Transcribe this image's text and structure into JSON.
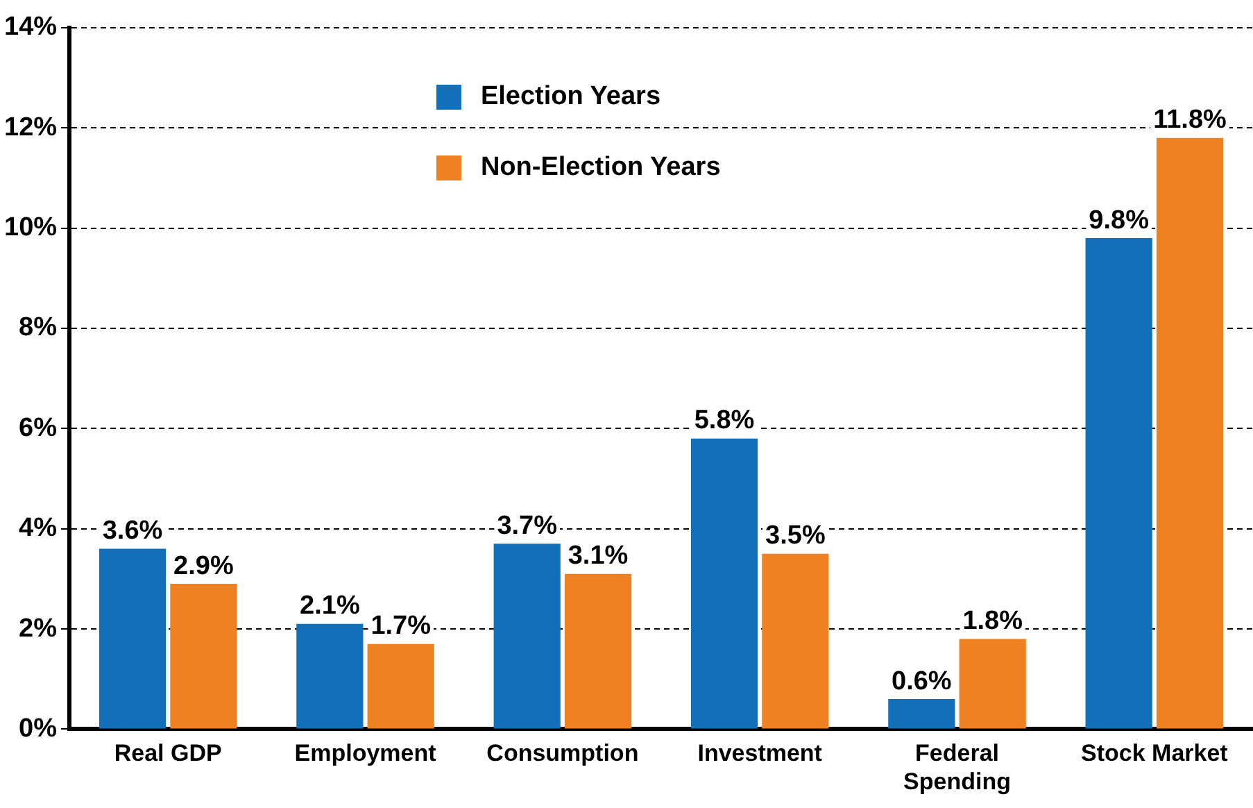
{
  "chart_data": {
    "type": "bar",
    "categories": [
      "Real GDP",
      "Employment",
      "Consumption",
      "Investment",
      "Federal Spending",
      "Stock Market"
    ],
    "series": [
      {
        "name": "Election Years",
        "color": "#1170b8",
        "values": [
          3.6,
          2.1,
          3.7,
          5.8,
          0.6,
          9.8
        ],
        "value_labels": [
          "3.6%",
          "2.1%",
          "3.7%",
          "5.8%",
          "0.6%",
          "9.8%"
        ]
      },
      {
        "name": "Non-Election Years",
        "color": "#f08122",
        "values": [
          2.9,
          1.7,
          3.1,
          3.5,
          1.8,
          11.8
        ],
        "value_labels": [
          "2.9%",
          "1.7%",
          "3.1%",
          "3.5%",
          "1.8%",
          "11.8%"
        ]
      }
    ],
    "ylim": [
      0,
      14
    ],
    "yticks": [
      {
        "value": 0,
        "label": "0%"
      },
      {
        "value": 2,
        "label": "2%"
      },
      {
        "value": 4,
        "label": "4%"
      },
      {
        "value": 6,
        "label": "6%"
      },
      {
        "value": 8,
        "label": "8%"
      },
      {
        "value": 10,
        "label": "10%"
      },
      {
        "value": 12,
        "label": "12%"
      },
      {
        "value": 14,
        "label": "14%"
      }
    ],
    "grid": "y",
    "line_style": "dashed",
    "legend": "top"
  }
}
